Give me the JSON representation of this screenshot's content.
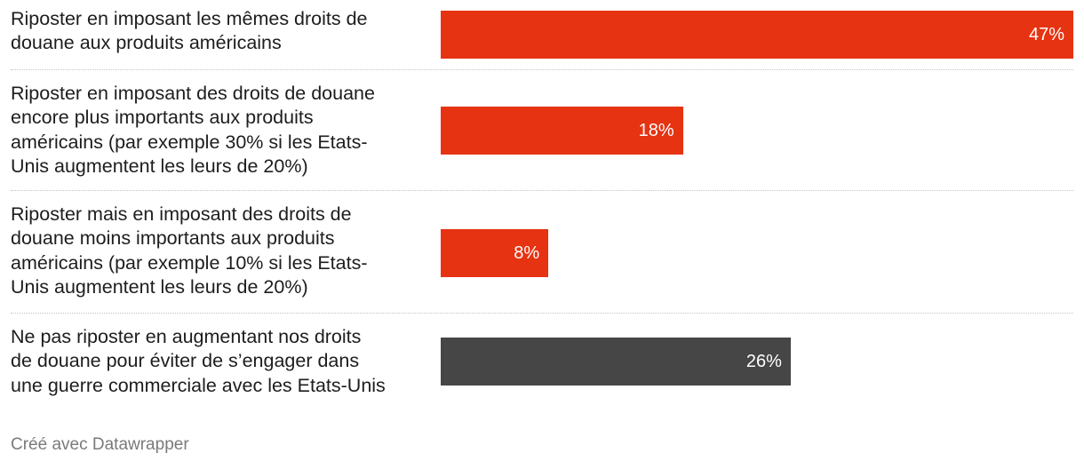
{
  "chart_data": {
    "type": "bar",
    "orientation": "horizontal",
    "categories": [
      "Riposter en imposant les mêmes droits de\ndouane aux produits américains",
      "Riposter en imposant des droits de douane\nencore plus importants aux produits\naméricains (par exemple 30% si les Etats-\nUnis augmentent les leurs de 20%)",
      "Riposter mais en imposant des droits de\ndouane moins importants aux produits\naméricains (par exemple 10% si les Etats-\nUnis augmentent les leurs de 20%)",
      "Ne pas riposter en augmentant nos droits\nde douane pour éviter de s’engager dans\nune guerre commerciale avec les Etats-Unis"
    ],
    "values": [
      47,
      18,
      8,
      26
    ],
    "value_labels": [
      "47%",
      "18%",
      "8%",
      "26%"
    ],
    "colors": [
      "#e63312",
      "#e63312",
      "#e63312",
      "#464646"
    ],
    "xlim": [
      0,
      47
    ],
    "title": "",
    "xlabel": "",
    "ylabel": ""
  },
  "footer": {
    "credit": "Créé avec Datawrapper"
  }
}
